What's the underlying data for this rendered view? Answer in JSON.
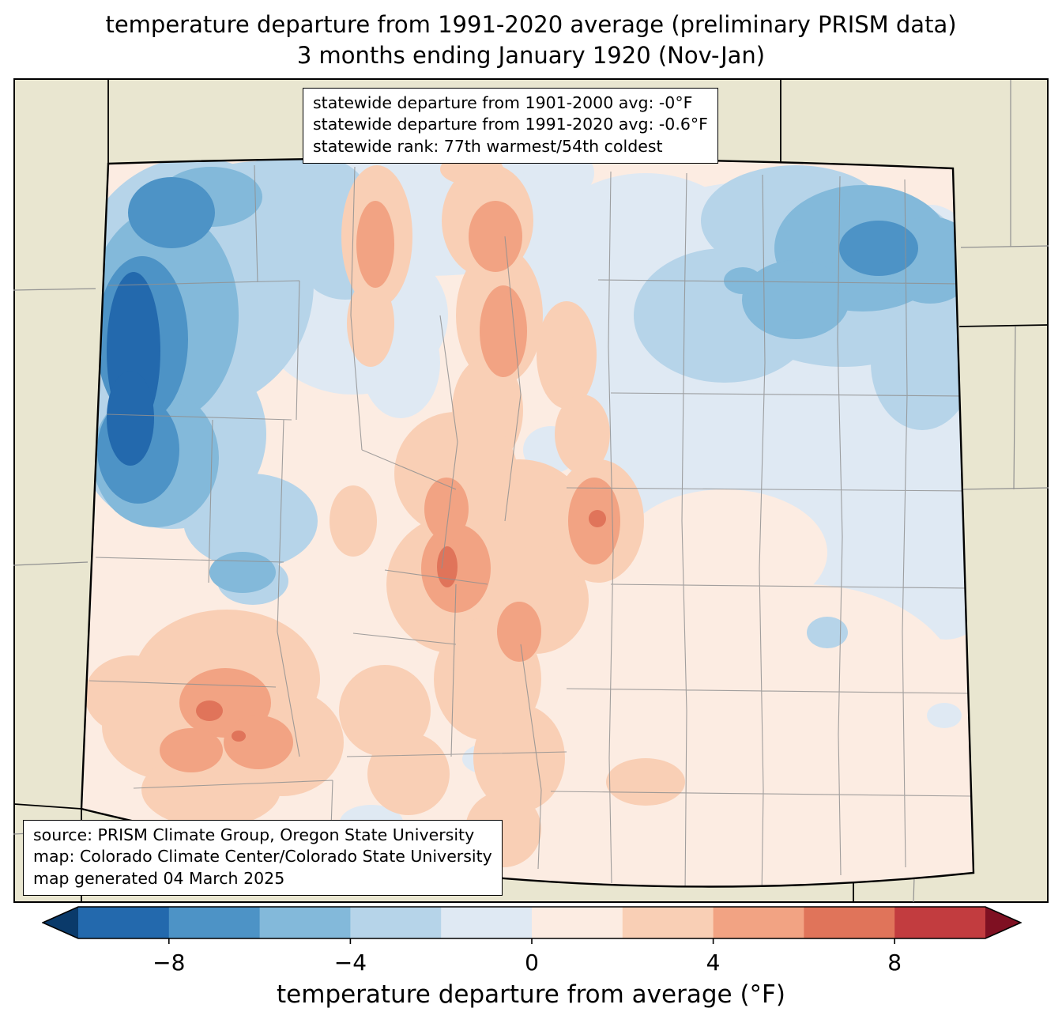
{
  "title": {
    "line1": "temperature departure from 1991-2020 average (preliminary PRISM data)",
    "line2": "3 months ending January 1920 (Nov-Jan)"
  },
  "stats_box": {
    "lines": [
      "statewide departure from 1901-2000 avg: -0°F",
      "statewide departure from 1991-2020 avg: -0.6°F",
      "statewide rank: 77th warmest/54th coldest"
    ]
  },
  "source_box": {
    "lines": [
      "source: PRISM Climate Group, Oregon State University",
      "map: Colorado Climate Center/Colorado State University",
      "map generated 04 March 2025"
    ]
  },
  "caption": "temperature departure from average (°F)",
  "palette": {
    "beige": "#e9e6d0",
    "county": "#919191",
    "c0": "#2369ad",
    "c1": "#4d93c6",
    "c2": "#83b9da",
    "c3": "#b6d4e9",
    "c4": "#dfe9f3",
    "c5": "#fcece2",
    "c6": "#f9cfb5",
    "c7": "#f2a383",
    "c8": "#e0745a",
    "c9": "#c23c3f",
    "arrowL": "#0a3a6a",
    "arrowR": "#7f1022"
  },
  "colorbar": {
    "type": "heatmap",
    "label": "temperature departure from average (°F)",
    "range": [
      -10,
      10
    ],
    "bin_size": 2,
    "colors": [
      "#2369ad",
      "#4d93c6",
      "#83b9da",
      "#b6d4e9",
      "#dfe9f3",
      "#fcece2",
      "#f9cfb5",
      "#f2a383",
      "#e0745a",
      "#c23c3f"
    ],
    "under_color": "#0a3a6a",
    "over_color": "#7f1022",
    "ticks": [
      {
        "value": -8,
        "label": "−8"
      },
      {
        "value": -4,
        "label": "−4"
      },
      {
        "value": 0,
        "label": "0"
      },
      {
        "value": 4,
        "label": "4"
      },
      {
        "value": 8,
        "label": "8"
      }
    ]
  },
  "map": {
    "region": "Colorado",
    "units": "°F departure from 1991-2020 average",
    "features": [
      {
        "name": "northwest-cold-anomaly",
        "approx_value": "-6 to -10"
      },
      {
        "name": "northeast-cold-anomaly",
        "approx_value": "-4 to -6"
      },
      {
        "name": "central-mountains-warm-anomaly",
        "approx_value": "+2 to +6"
      },
      {
        "name": "southwest-warm-anomaly",
        "approx_value": "+2 to +6"
      },
      {
        "name": "eastern-plains-near-normal",
        "approx_value": "-2 to +2"
      }
    ]
  }
}
